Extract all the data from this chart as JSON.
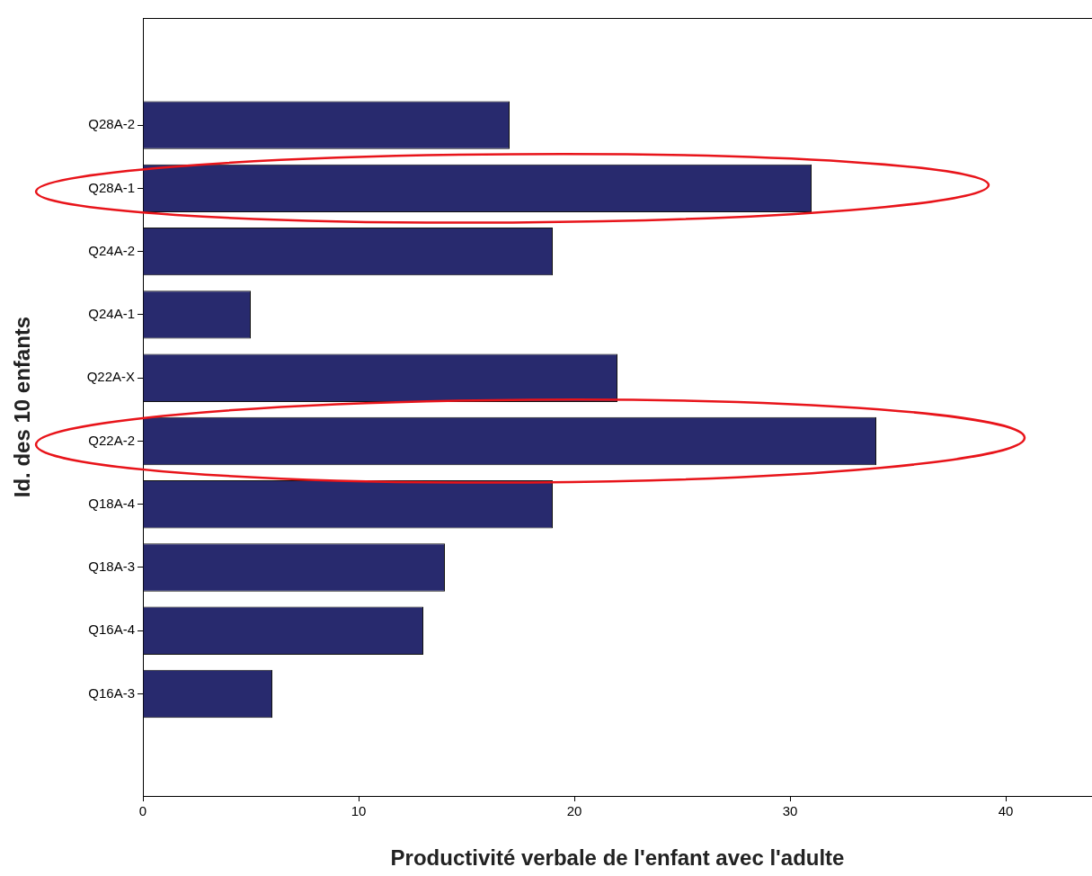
{
  "chart_data": {
    "type": "bar",
    "orientation": "horizontal",
    "xlabel": "Productivité verbale de l'enfant avec l'adulte",
    "ylabel": "Id. des 10 enfants",
    "categories": [
      "Q28A-2",
      "Q28A-1",
      "Q24A-2",
      "Q24A-1",
      "Q22A-X",
      "Q22A-2",
      "Q18A-4",
      "Q18A-3",
      "Q16A-4",
      "Q16A-3"
    ],
    "values": [
      17,
      31,
      19,
      5,
      22,
      34,
      19,
      14,
      13,
      6
    ],
    "color": "#282a6e",
    "xlim": [
      0,
      44
    ],
    "xticks": [
      0,
      10,
      20,
      30,
      40
    ],
    "grid": false,
    "legend": false
  }
}
